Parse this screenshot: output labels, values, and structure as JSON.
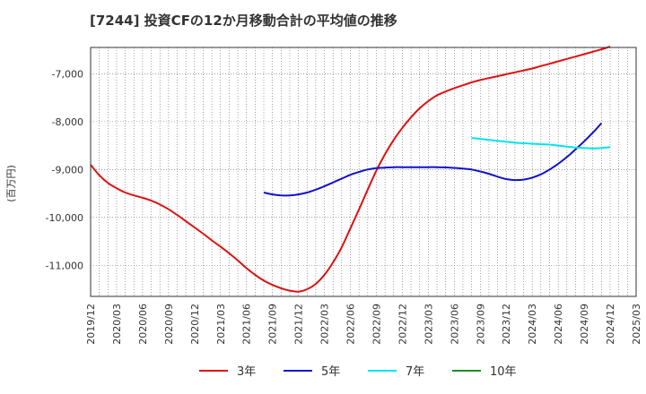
{
  "chart_data": {
    "type": "line",
    "title": "[7244]  投資CFの12か月移動合計の平均値の推移",
    "ylabel": "(百万円)",
    "xlabel": "",
    "x_ticks": [
      "2019/12",
      "2020/03",
      "2020/06",
      "2020/09",
      "2020/12",
      "2021/03",
      "2021/06",
      "2021/09",
      "2021/12",
      "2022/03",
      "2022/06",
      "2022/09",
      "2022/12",
      "2023/03",
      "2023/06",
      "2023/09",
      "2023/12",
      "2024/03",
      "2024/06",
      "2024/09",
      "2024/12",
      "2025/03"
    ],
    "y_ticks": [
      -7000,
      -8000,
      -9000,
      -10000,
      -11000
    ],
    "y_tick_labels": [
      "-7,000",
      "-8,000",
      "-9,000",
      "-10,000",
      "-11,000"
    ],
    "ylim": [
      -11650,
      -6450
    ],
    "xlim": [
      "2019/12",
      "2025/03"
    ],
    "grid": true,
    "legend_position": "bottom",
    "series": [
      {
        "name": "3年",
        "color": "#dd1111",
        "points": [
          [
            "2019/12",
            -8900
          ],
          [
            "2020/01",
            -9120
          ],
          [
            "2020/02",
            -9280
          ],
          [
            "2020/03",
            -9390
          ],
          [
            "2020/04",
            -9480
          ],
          [
            "2020/05",
            -9540
          ],
          [
            "2020/06",
            -9590
          ],
          [
            "2020/07",
            -9650
          ],
          [
            "2020/08",
            -9730
          ],
          [
            "2020/09",
            -9830
          ],
          [
            "2020/10",
            -9950
          ],
          [
            "2020/11",
            -10080
          ],
          [
            "2020/12",
            -10210
          ],
          [
            "2021/01",
            -10340
          ],
          [
            "2021/02",
            -10480
          ],
          [
            "2021/03",
            -10610
          ],
          [
            "2021/04",
            -10750
          ],
          [
            "2021/05",
            -10900
          ],
          [
            "2021/06",
            -11060
          ],
          [
            "2021/07",
            -11200
          ],
          [
            "2021/08",
            -11320
          ],
          [
            "2021/09",
            -11410
          ],
          [
            "2021/10",
            -11480
          ],
          [
            "2021/11",
            -11530
          ],
          [
            "2021/12",
            -11550
          ],
          [
            "2022/01",
            -11500
          ],
          [
            "2022/02",
            -11390
          ],
          [
            "2022/03",
            -11200
          ],
          [
            "2022/04",
            -10940
          ],
          [
            "2022/05",
            -10620
          ],
          [
            "2022/06",
            -10230
          ],
          [
            "2022/07",
            -9830
          ],
          [
            "2022/08",
            -9420
          ],
          [
            "2022/09",
            -9020
          ],
          [
            "2022/10",
            -8680
          ],
          [
            "2022/11",
            -8380
          ],
          [
            "2022/12",
            -8130
          ],
          [
            "2023/01",
            -7910
          ],
          [
            "2023/02",
            -7720
          ],
          [
            "2023/03",
            -7570
          ],
          [
            "2023/04",
            -7450
          ],
          [
            "2023/05",
            -7370
          ],
          [
            "2023/06",
            -7300
          ],
          [
            "2023/07",
            -7240
          ],
          [
            "2023/08",
            -7180
          ],
          [
            "2023/09",
            -7130
          ],
          [
            "2023/10",
            -7090
          ],
          [
            "2023/11",
            -7050
          ],
          [
            "2023/12",
            -7010
          ],
          [
            "2024/01",
            -6970
          ],
          [
            "2024/02",
            -6930
          ],
          [
            "2024/03",
            -6890
          ],
          [
            "2024/04",
            -6840
          ],
          [
            "2024/05",
            -6790
          ],
          [
            "2024/06",
            -6740
          ],
          [
            "2024/07",
            -6690
          ],
          [
            "2024/08",
            -6640
          ],
          [
            "2024/09",
            -6590
          ],
          [
            "2024/10",
            -6540
          ],
          [
            "2024/11",
            -6490
          ],
          [
            "2024/12",
            -6430
          ]
        ]
      },
      {
        "name": "5年",
        "color": "#1111cc",
        "points": [
          [
            "2021/08",
            -9480
          ],
          [
            "2021/09",
            -9520
          ],
          [
            "2021/10",
            -9540
          ],
          [
            "2021/11",
            -9540
          ],
          [
            "2021/12",
            -9520
          ],
          [
            "2022/01",
            -9480
          ],
          [
            "2022/02",
            -9420
          ],
          [
            "2022/03",
            -9350
          ],
          [
            "2022/04",
            -9270
          ],
          [
            "2022/05",
            -9190
          ],
          [
            "2022/06",
            -9110
          ],
          [
            "2022/07",
            -9050
          ],
          [
            "2022/08",
            -9000
          ],
          [
            "2022/09",
            -8970
          ],
          [
            "2022/10",
            -8960
          ],
          [
            "2022/11",
            -8950
          ],
          [
            "2022/12",
            -8950
          ],
          [
            "2023/01",
            -8950
          ],
          [
            "2023/02",
            -8950
          ],
          [
            "2023/03",
            -8950
          ],
          [
            "2023/04",
            -8950
          ],
          [
            "2023/05",
            -8955
          ],
          [
            "2023/06",
            -8965
          ],
          [
            "2023/07",
            -8980
          ],
          [
            "2023/08",
            -9000
          ],
          [
            "2023/09",
            -9040
          ],
          [
            "2023/10",
            -9090
          ],
          [
            "2023/11",
            -9150
          ],
          [
            "2023/12",
            -9200
          ],
          [
            "2024/01",
            -9220
          ],
          [
            "2024/02",
            -9210
          ],
          [
            "2024/03",
            -9170
          ],
          [
            "2024/04",
            -9100
          ],
          [
            "2024/05",
            -9000
          ],
          [
            "2024/06",
            -8880
          ],
          [
            "2024/07",
            -8740
          ],
          [
            "2024/08",
            -8580
          ],
          [
            "2024/09",
            -8410
          ],
          [
            "2024/10",
            -8230
          ],
          [
            "2024/11",
            -8030
          ]
        ]
      },
      {
        "name": "7年",
        "color": "#00e5ee",
        "points": [
          [
            "2023/08",
            -8340
          ],
          [
            "2023/09",
            -8360
          ],
          [
            "2023/10",
            -8380
          ],
          [
            "2023/11",
            -8400
          ],
          [
            "2023/12",
            -8420
          ],
          [
            "2024/01",
            -8440
          ],
          [
            "2024/02",
            -8450
          ],
          [
            "2024/03",
            -8460
          ],
          [
            "2024/04",
            -8470
          ],
          [
            "2024/05",
            -8480
          ],
          [
            "2024/06",
            -8500
          ],
          [
            "2024/07",
            -8520
          ],
          [
            "2024/08",
            -8540
          ],
          [
            "2024/09",
            -8550
          ],
          [
            "2024/10",
            -8560
          ],
          [
            "2024/11",
            -8550
          ],
          [
            "2024/12",
            -8530
          ]
        ]
      },
      {
        "name": "10年",
        "color": "#228b22",
        "points": []
      }
    ]
  }
}
